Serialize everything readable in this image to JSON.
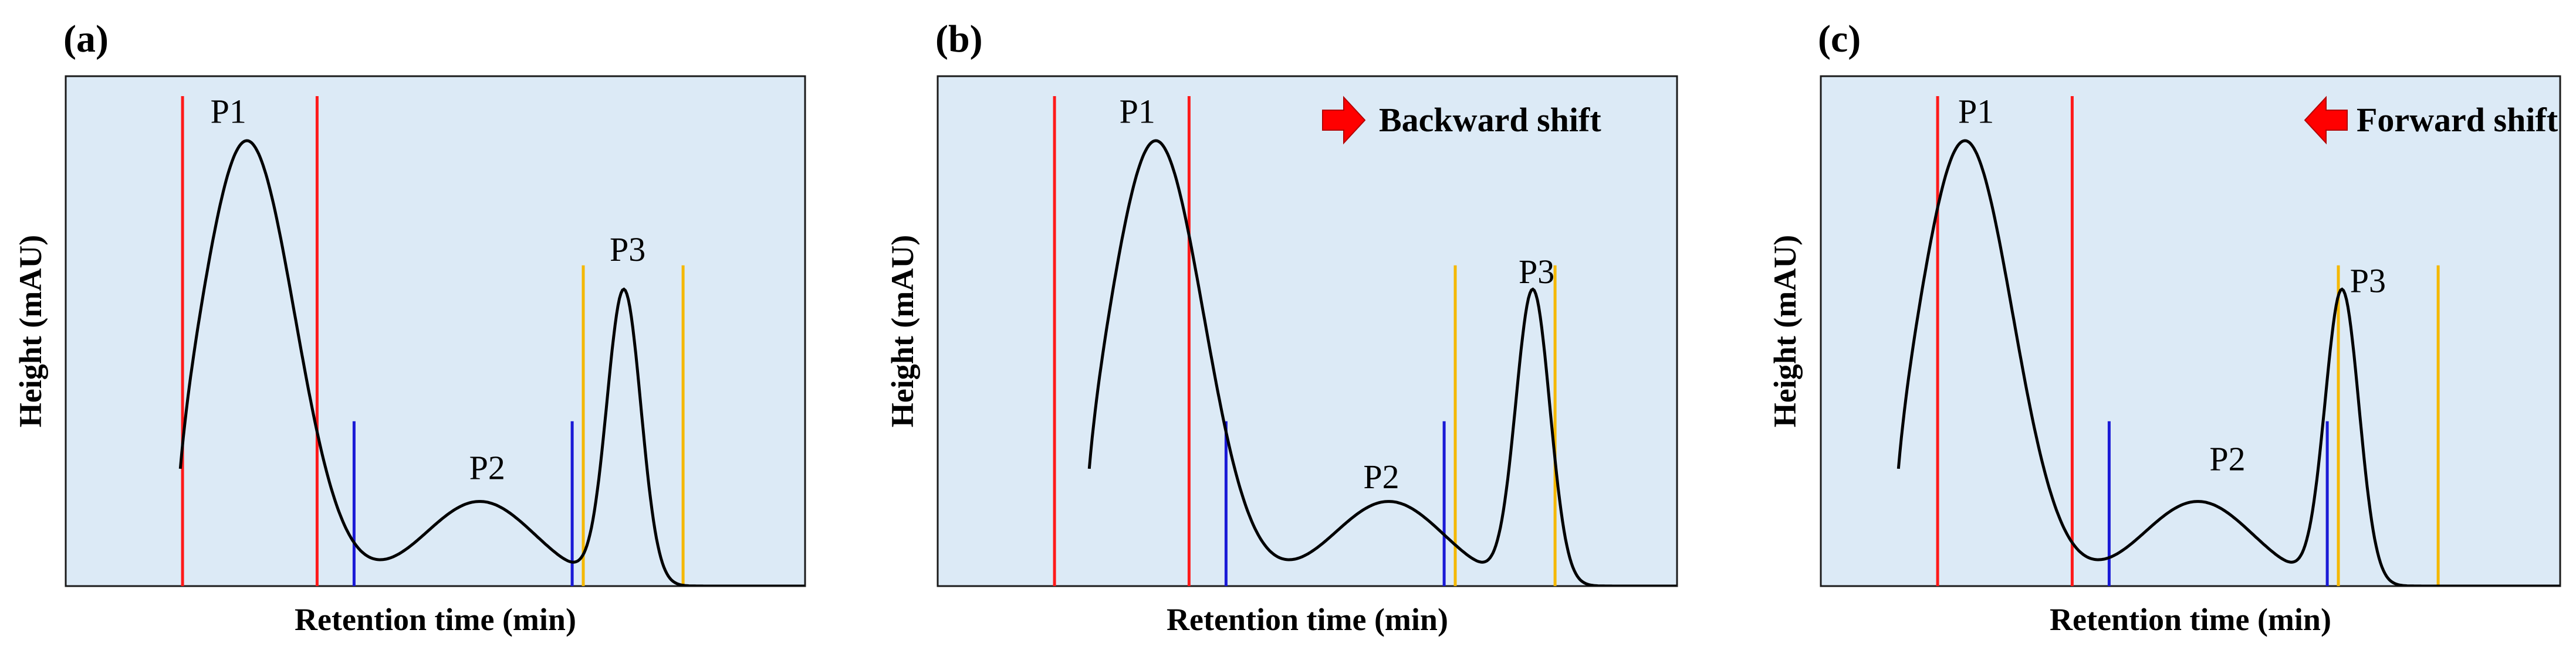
{
  "colors": {
    "background": "#dceaf6",
    "curve": "#000000",
    "p1_marker": "#ff1a1a",
    "p2_marker": "#1a1ad6",
    "p3_marker": "#f5b800",
    "arrow": "#ff0000"
  },
  "chart_data": [
    {
      "type": "line",
      "panel": "(a)",
      "xlabel": "Retention time (min)",
      "ylabel": "Height (mAU)",
      "xlim": [
        0,
        100
      ],
      "ylim": [
        0,
        100
      ],
      "shift_label": "",
      "shift_direction": "",
      "peaks": [
        {
          "name": "P1",
          "center": 24.5,
          "height": 100,
          "width": 6.5
        },
        {
          "name": "P2",
          "center": 56.0,
          "height": 19,
          "width": 7.5
        },
        {
          "name": "P3",
          "center": 75.5,
          "height": 66,
          "width": 2.3
        }
      ],
      "curve_start_x": 15.5,
      "markers": [
        {
          "peak": "P1",
          "x": [
            15.8,
            34.0
          ],
          "top": 110,
          "color": "#ff1a1a"
        },
        {
          "peak": "P2",
          "x": [
            39.0,
            68.5
          ],
          "top": 37,
          "color": "#1a1ad6"
        },
        {
          "peak": "P3",
          "x": [
            70.0,
            83.5
          ],
          "top": 72,
          "color": "#f5b800"
        }
      ],
      "labels": [
        {
          "text": "P1",
          "x": 22,
          "y": 104
        },
        {
          "text": "P2",
          "x": 57,
          "y": 24
        },
        {
          "text": "P3",
          "x": 76,
          "y": 73
        }
      ]
    },
    {
      "type": "line",
      "panel": "(b)",
      "xlabel": "Retention time (min)",
      "ylabel": "Height (mAU)",
      "xlim": [
        0,
        100
      ],
      "ylim": [
        0,
        100
      ],
      "shift_label": "Backward shift",
      "shift_direction": "right",
      "peaks": [
        {
          "name": "P1",
          "center": 29.5,
          "height": 100,
          "width": 6.5
        },
        {
          "name": "P2",
          "center": 61.0,
          "height": 19,
          "width": 7.5
        },
        {
          "name": "P3",
          "center": 80.5,
          "height": 66,
          "width": 2.3
        }
      ],
      "curve_start_x": 20.5,
      "markers": [
        {
          "peak": "P1",
          "x": [
            15.8,
            34.0
          ],
          "top": 110,
          "color": "#ff1a1a"
        },
        {
          "peak": "P2",
          "x": [
            39.0,
            68.5
          ],
          "top": 37,
          "color": "#1a1ad6"
        },
        {
          "peak": "P3",
          "x": [
            70.0,
            83.5
          ],
          "top": 72,
          "color": "#f5b800"
        }
      ],
      "labels": [
        {
          "text": "P1",
          "x": 27,
          "y": 104
        },
        {
          "text": "P2",
          "x": 60,
          "y": 22
        },
        {
          "text": "P3",
          "x": 81,
          "y": 68
        }
      ]
    },
    {
      "type": "line",
      "panel": "(c)",
      "xlabel": "Retention time (min)",
      "ylabel": "Height (mAU)",
      "xlim": [
        0,
        100
      ],
      "ylim": [
        0,
        100
      ],
      "shift_label": "Forward shift",
      "shift_direction": "left",
      "peaks": [
        {
          "name": "P1",
          "center": 19.5,
          "height": 100,
          "width": 6.5
        },
        {
          "name": "P2",
          "center": 51.0,
          "height": 19,
          "width": 7.5
        },
        {
          "name": "P3",
          "center": 70.5,
          "height": 66,
          "width": 2.3
        }
      ],
      "curve_start_x": 10.5,
      "markers": [
        {
          "peak": "P1",
          "x": [
            15.8,
            34.0
          ],
          "top": 110,
          "color": "#ff1a1a"
        },
        {
          "peak": "P2",
          "x": [
            39.0,
            68.5
          ],
          "top": 37,
          "color": "#1a1ad6"
        },
        {
          "peak": "P3",
          "x": [
            70.0,
            83.5
          ],
          "top": 72,
          "color": "#f5b800"
        }
      ],
      "labels": [
        {
          "text": "P1",
          "x": 21,
          "y": 104
        },
        {
          "text": "P2",
          "x": 55,
          "y": 26
        },
        {
          "text": "P3",
          "x": 74,
          "y": 66
        }
      ]
    }
  ]
}
